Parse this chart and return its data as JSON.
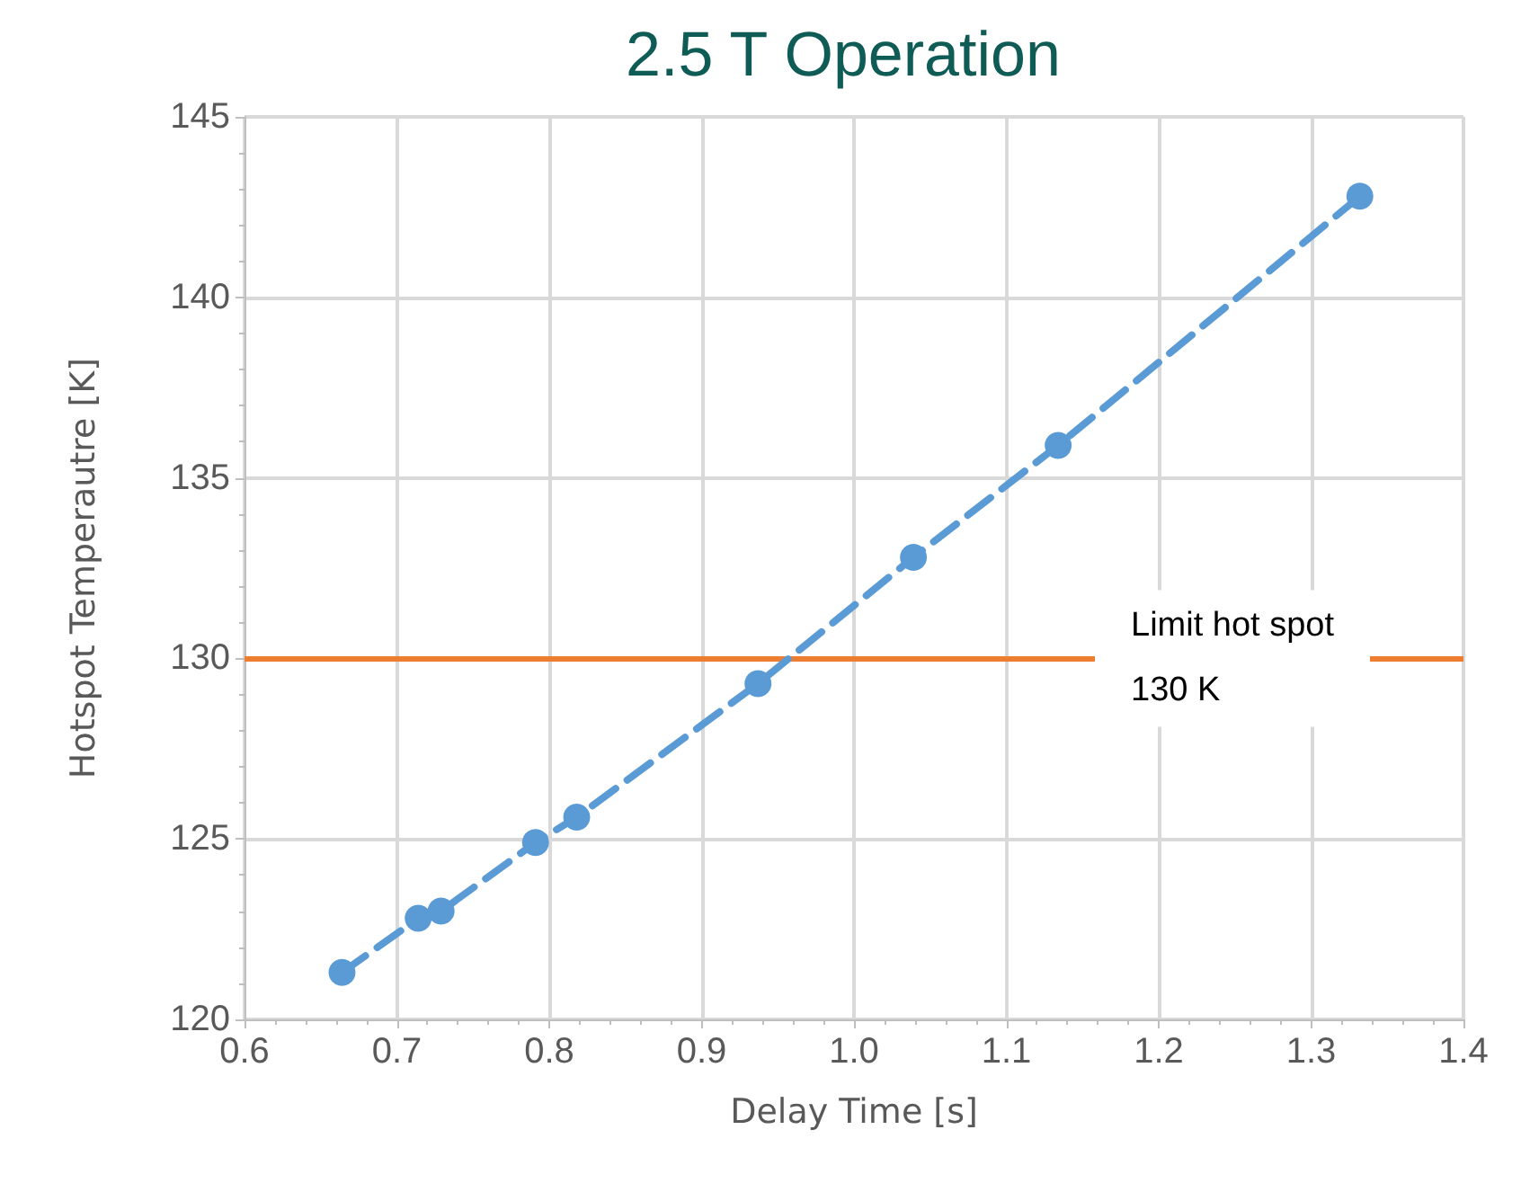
{
  "chart_data": {
    "type": "line",
    "title": "2.5 T Operation",
    "xlabel": "Delay Time [s]",
    "ylabel": "Hotspot Temperautre [K]",
    "x": [
      0.664,
      0.714,
      0.729,
      0.791,
      0.818,
      0.937,
      1.039,
      1.134,
      1.332
    ],
    "series": [
      {
        "color": "#5b9bd5",
        "values": [
          121.3,
          122.8,
          123.0,
          124.9,
          125.6,
          129.3,
          132.8,
          135.9,
          142.8
        ]
      }
    ],
    "marker": "circle",
    "line_style": "dashed",
    "xlim": [
      0.6,
      1.4
    ],
    "xticks": [
      0.6,
      0.7,
      0.8,
      0.9,
      {
        "value": 1.0,
        "label": "1.0"
      },
      1.1,
      1.2,
      1.3,
      1.4
    ],
    "ylim": [
      120,
      145
    ],
    "yticks": [
      120,
      125,
      130,
      135,
      140,
      145
    ],
    "grid": true,
    "ref_lines": [
      {
        "axis": "y",
        "value": 130,
        "label": "Limit hot spot\n130 K",
        "color": "#ed7d31",
        "line_style": "solid"
      }
    ]
  }
}
